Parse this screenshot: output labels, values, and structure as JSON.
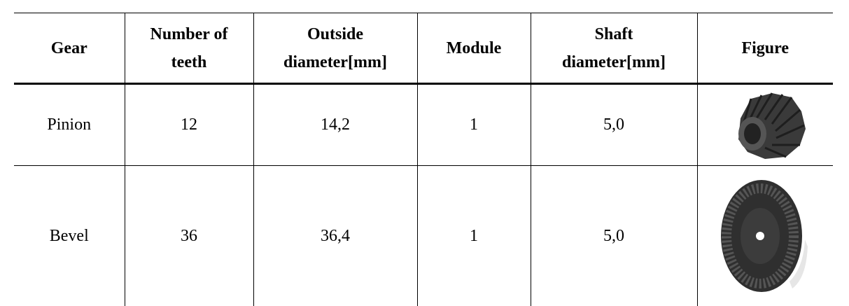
{
  "table": {
    "header": [
      [
        "Gear"
      ],
      [
        "Number of",
        "teeth"
      ],
      [
        "Outside",
        "diameter[mm]"
      ],
      [
        "Module"
      ],
      [
        "Shaft",
        "diameter[mm]"
      ],
      [
        "Figure"
      ]
    ],
    "rows": [
      [
        "Pinion",
        "12",
        "14,2",
        "1",
        "5,0"
      ],
      [
        "Bevel",
        "36",
        "36,4",
        "1",
        "5,0"
      ]
    ]
  }
}
